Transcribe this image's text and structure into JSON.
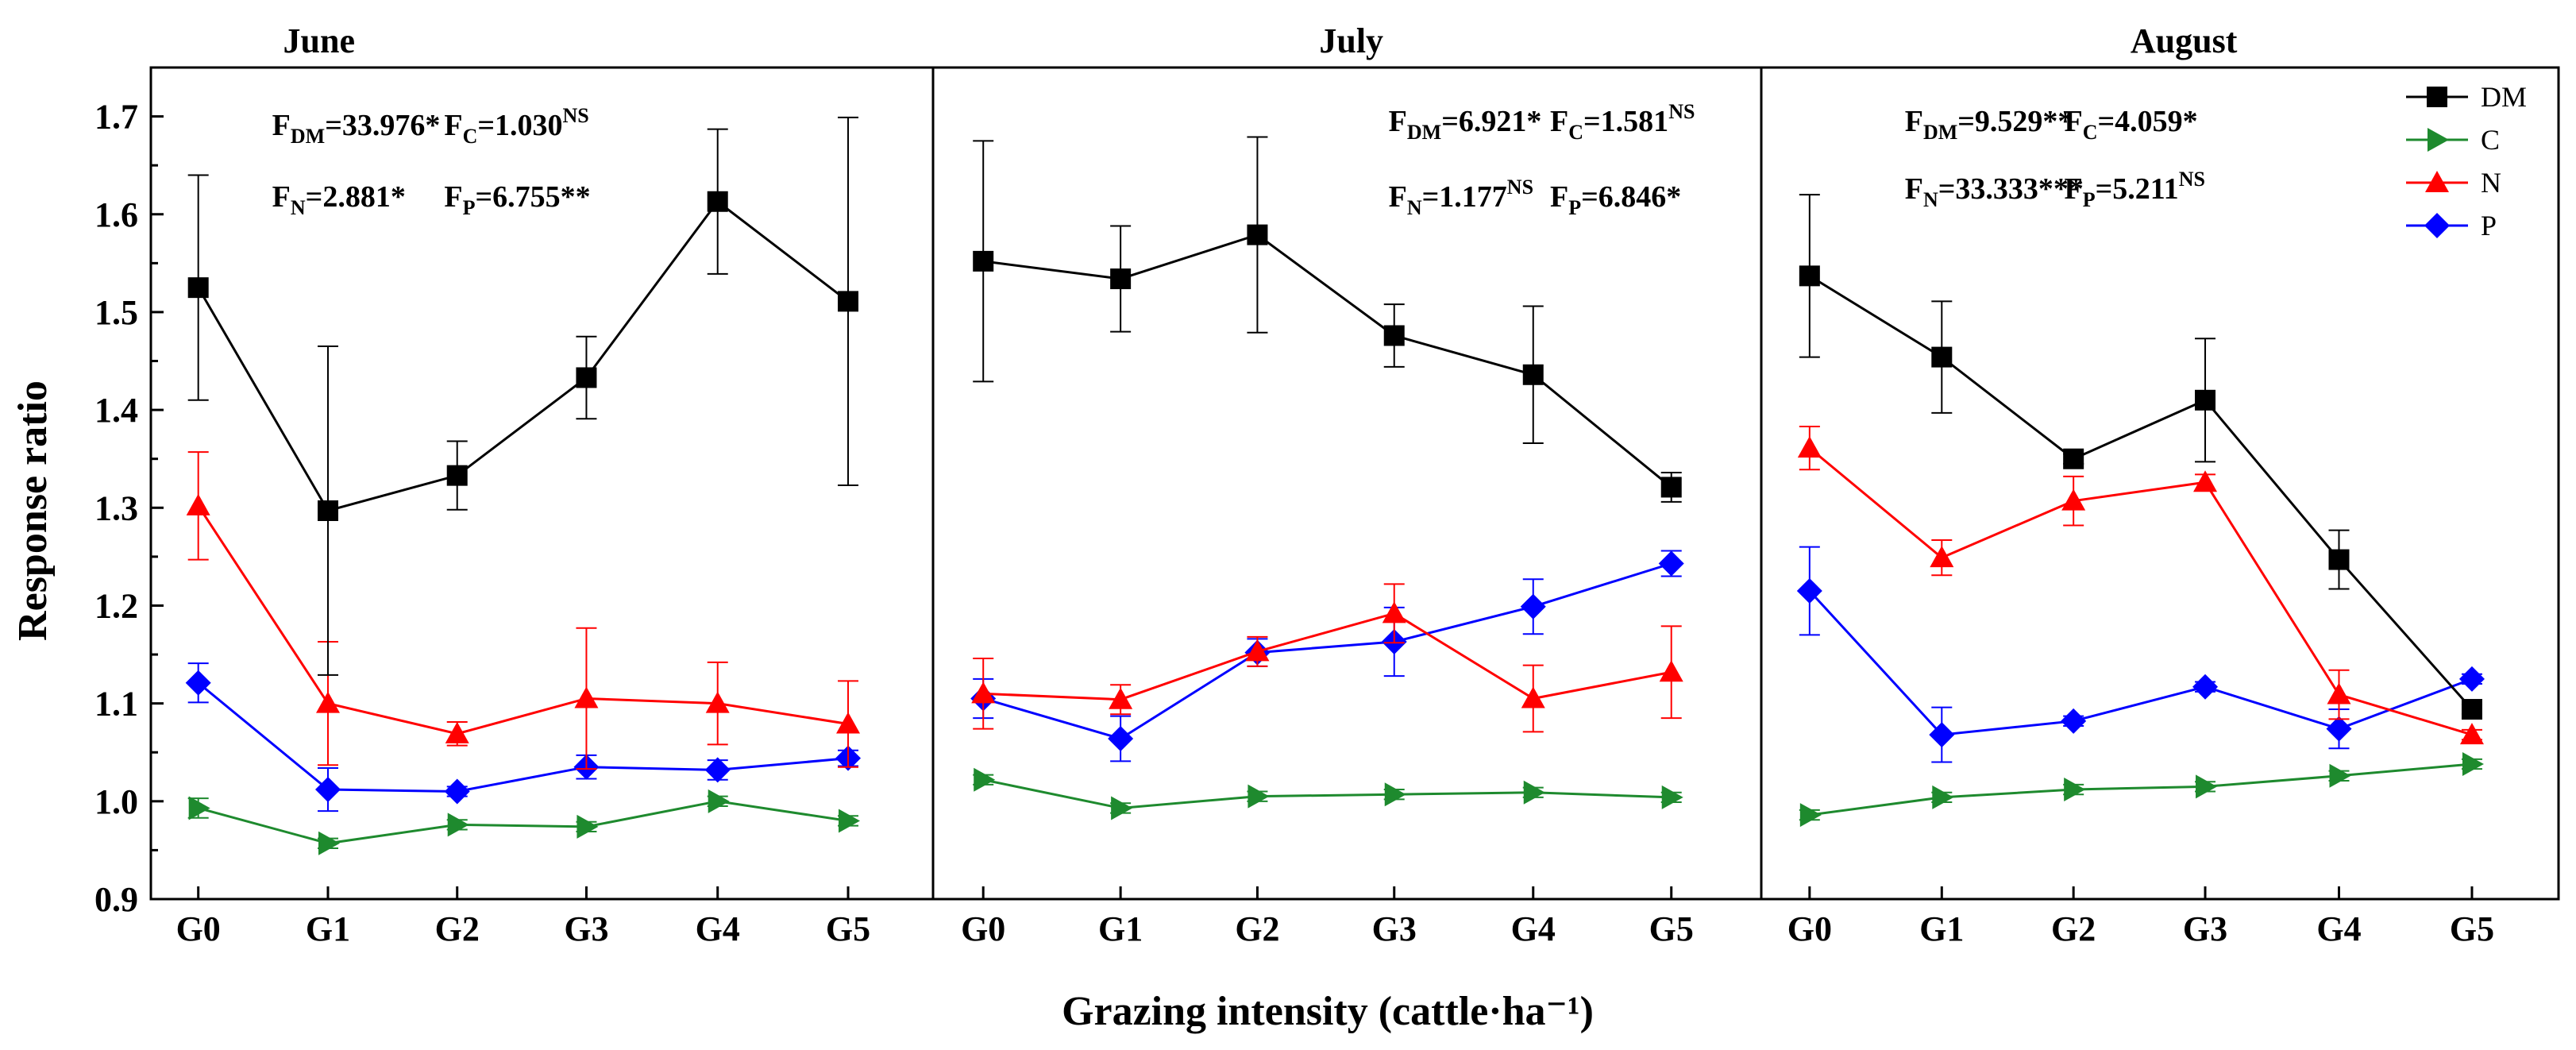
{
  "chart_data": {
    "type": "line",
    "ylabel": "Response ratio",
    "xlabel": "Grazing intensity (cattle·ha⁻¹)",
    "ylim": [
      0.9,
      1.75
    ],
    "yticks": [
      "0.9",
      "1.0",
      "1.1",
      "1.2",
      "1.3",
      "1.4",
      "1.5",
      "1.6",
      "1.7"
    ],
    "categories": [
      "G0",
      "G1",
      "G2",
      "G3",
      "G4",
      "G5"
    ],
    "series_styles": [
      {
        "key": "DM",
        "name": "DM",
        "color": "#000000",
        "marker": "square"
      },
      {
        "key": "C",
        "name": "C",
        "color": "#1e8a2e",
        "marker": "triangle-right"
      },
      {
        "key": "N",
        "name": "N",
        "color": "#ff0000",
        "marker": "triangle-up"
      },
      {
        "key": "P",
        "name": "P",
        "color": "#0000ff",
        "marker": "diamond"
      }
    ],
    "panels": [
      {
        "title": "June",
        "stats": [
          {
            "F": "F",
            "sub": "DM",
            "value": "=33.976*",
            "sup": ""
          },
          {
            "F": "F",
            "sub": "C",
            "value": "=1.030",
            "sup": "NS"
          },
          {
            "F": "F",
            "sub": "N",
            "value": "=2.881*",
            "sup": ""
          },
          {
            "F": "F",
            "sub": "P",
            "value": "=6.755**",
            "sup": ""
          }
        ],
        "series": {
          "DM": {
            "values": [
              1.525,
              1.297,
              1.333,
              1.433,
              1.613,
              1.511
            ],
            "errors": [
              0.115,
              0.168,
              0.035,
              0.042,
              0.074,
              0.188
            ]
          },
          "C": {
            "values": [
              0.993,
              0.957,
              0.976,
              0.974,
              1.0,
              0.98
            ],
            "errors": [
              0.01,
              0.005,
              0.005,
              0.005,
              0.005,
              0.005
            ]
          },
          "N": {
            "values": [
              1.302,
              1.1,
              1.069,
              1.105,
              1.1,
              1.079
            ],
            "errors": [
              0.055,
              0.063,
              0.012,
              0.072,
              0.042,
              0.044
            ]
          },
          "P": {
            "values": [
              1.121,
              1.012,
              1.01,
              1.035,
              1.032,
              1.044
            ],
            "errors": [
              0.02,
              0.022,
              0.005,
              0.012,
              0.01,
              0.008
            ]
          }
        }
      },
      {
        "title": "July",
        "stats": [
          {
            "F": "F",
            "sub": "DM",
            "value": "=6.921*",
            "sup": ""
          },
          {
            "F": "F",
            "sub": "C",
            "value": "=1.581",
            "sup": "NS"
          },
          {
            "F": "F",
            "sub": "N",
            "value": "=1.177",
            "sup": "NS"
          },
          {
            "F": "F",
            "sub": "P",
            "value": "=6.846*",
            "sup": ""
          }
        ],
        "series": {
          "DM": {
            "values": [
              1.552,
              1.534,
              1.579,
              1.476,
              1.436,
              1.321
            ],
            "errors": [
              0.123,
              0.054,
              0.1,
              0.032,
              0.07,
              0.015
            ]
          },
          "C": {
            "values": [
              1.022,
              0.993,
              1.005,
              1.007,
              1.009,
              1.004
            ],
            "errors": [
              0.005,
              0.005,
              0.005,
              0.005,
              0.005,
              0.005
            ]
          },
          "N": {
            "values": [
              1.11,
              1.104,
              1.153,
              1.192,
              1.105,
              1.132
            ],
            "errors": [
              0.036,
              0.015,
              0.015,
              0.03,
              0.034,
              0.047
            ]
          },
          "P": {
            "values": [
              1.105,
              1.064,
              1.152,
              1.163,
              1.199,
              1.243
            ],
            "errors": [
              0.02,
              0.023,
              0.014,
              0.035,
              0.028,
              0.013
            ]
          }
        }
      },
      {
        "title": "August",
        "stats": [
          {
            "F": "F",
            "sub": "DM",
            "value": "=9.529**",
            "sup": ""
          },
          {
            "F": "F",
            "sub": "C",
            "value": "=4.059*",
            "sup": ""
          },
          {
            "F": "F",
            "sub": "N",
            "value": "=33.333***",
            "sup": ""
          },
          {
            "F": "F",
            "sub": "P",
            "value": "=5.211",
            "sup": "NS"
          }
        ],
        "series": {
          "DM": {
            "values": [
              1.537,
              1.454,
              1.35,
              1.41,
              1.247,
              1.094
            ],
            "errors": [
              0.083,
              0.057,
              0.005,
              0.063,
              0.03,
              0.005
            ]
          },
          "C": {
            "values": [
              0.986,
              1.004,
              1.012,
              1.015,
              1.026,
              1.038
            ],
            "errors": [
              0.005,
              0.005,
              0.005,
              0.005,
              0.005,
              0.005
            ]
          },
          "N": {
            "values": [
              1.361,
              1.249,
              1.307,
              1.326,
              1.109,
              1.068
            ],
            "errors": [
              0.022,
              0.018,
              0.025,
              0.008,
              0.025,
              0.005
            ]
          },
          "P": {
            "values": [
              1.215,
              1.068,
              1.082,
              1.117,
              1.074,
              1.125
            ],
            "errors": [
              0.045,
              0.028,
              0.005,
              0.005,
              0.02,
              0.005
            ]
          }
        }
      }
    ]
  }
}
